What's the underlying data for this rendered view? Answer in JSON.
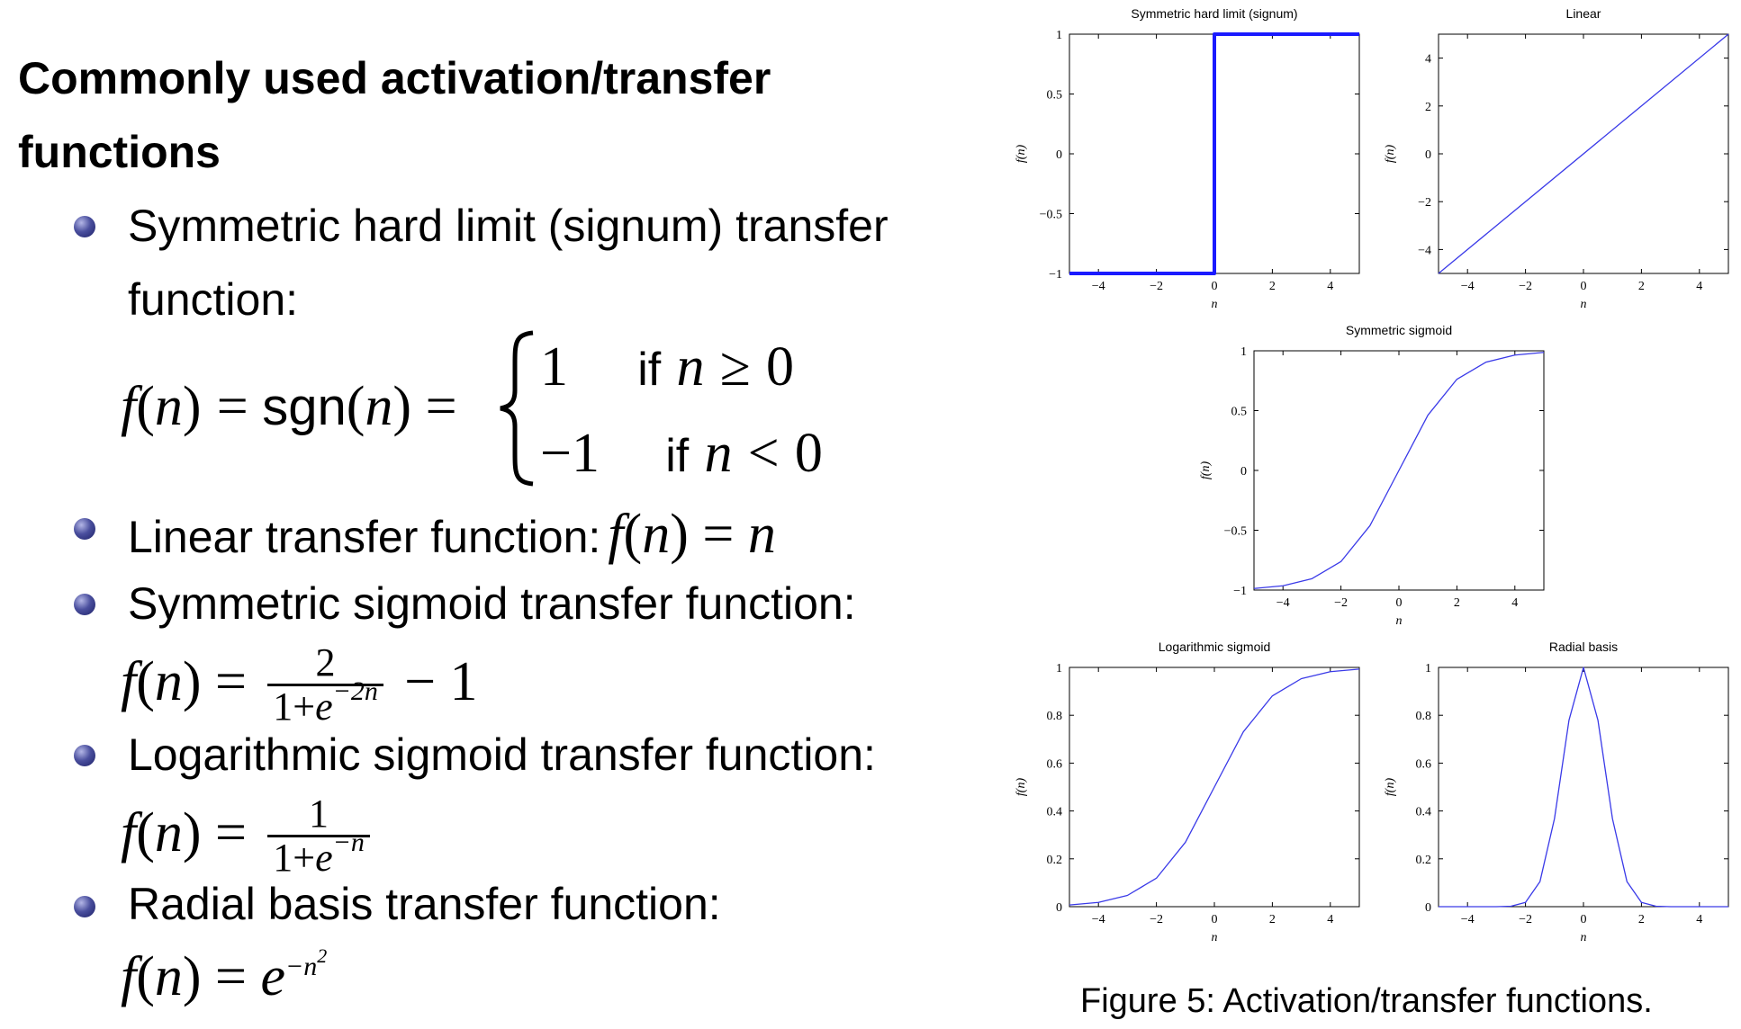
{
  "slide": {
    "heading_line1": "Commonly used activation/transfer",
    "heading_line2": "functions",
    "bullets": [
      {
        "text_line1": "Symmetric hard limit (signum) transfer",
        "text_line2": "function:"
      },
      {
        "text": "Linear transfer function:"
      },
      {
        "text": "Symmetric sigmoid transfer function:"
      },
      {
        "text": "Logarithmic sigmoid transfer function:"
      },
      {
        "text": "Radial basis transfer function:"
      }
    ],
    "formulas": {
      "signum": {
        "lhs_f": "f",
        "lhs_n": "n",
        "sgn": "sgn",
        "case1_val": "1",
        "case1_cond": "if",
        "case2_val": "−1",
        "case2_cond": "if",
        "var": "n",
        "ge": "≥",
        "lt": "<",
        "zero": "0"
      },
      "linear": {
        "f": "f",
        "n": "n"
      },
      "symmetric_sigmoid": {
        "num": "2",
        "den_prefix": "1+",
        "e": "e",
        "exp": "−2n",
        "tail": "− 1"
      },
      "log_sigmoid": {
        "num": "1",
        "den_prefix": "1+",
        "e": "e",
        "exp": "−n"
      },
      "radial_basis": {
        "e": "e",
        "exp": "−n",
        "exp_sq": "2"
      }
    }
  },
  "figure": {
    "caption": "Figure 5: Activation/transfer functions.",
    "ylabel": "f(n)",
    "xlabel": "n"
  },
  "chart_data": [
    {
      "type": "line",
      "title": "Symmetric hard limit (signum)",
      "xlabel": "n",
      "ylabel": "f(n)",
      "xlim": [
        -5,
        5
      ],
      "ylim": [
        -1,
        1
      ],
      "xticks": [
        -4,
        -2,
        0,
        2,
        4
      ],
      "yticks": [
        -1,
        -0.5,
        0,
        0.5,
        1
      ],
      "series": [
        {
          "x": [
            -5,
            0,
            0,
            5
          ],
          "y": [
            -1,
            -1,
            1,
            1
          ]
        }
      ],
      "color": "#1a1aff",
      "line_weight": "thick"
    },
    {
      "type": "line",
      "title": "Linear",
      "xlabel": "n",
      "ylabel": "f(n)",
      "xlim": [
        -5,
        5
      ],
      "ylim": [
        -5,
        5
      ],
      "xticks": [
        -4,
        -2,
        0,
        2,
        4
      ],
      "yticks": [
        -4,
        -2,
        0,
        2,
        4
      ],
      "series": [
        {
          "x": [
            -5,
            5
          ],
          "y": [
            -5,
            5
          ]
        }
      ],
      "color": "#3a3ae8",
      "line_weight": "thin"
    },
    {
      "type": "line",
      "title": "Symmetric sigmoid",
      "xlabel": "n",
      "ylabel": "f(n)",
      "xlim": [
        -5,
        5
      ],
      "ylim": [
        -1,
        1
      ],
      "xticks": [
        -4,
        -2,
        0,
        2,
        4
      ],
      "yticks": [
        -1,
        -0.5,
        0,
        0.5,
        1
      ],
      "series": [
        {
          "x": [
            -5,
            -4,
            -3,
            -2,
            -1,
            0,
            1,
            2,
            3,
            4,
            5
          ],
          "y": [
            -0.987,
            -0.964,
            -0.905,
            -0.762,
            -0.462,
            0,
            0.462,
            0.762,
            0.905,
            0.964,
            0.987
          ]
        }
      ],
      "color": "#3a3ae8",
      "line_weight": "thin"
    },
    {
      "type": "line",
      "title": "Logarithmic sigmoid",
      "xlabel": "n",
      "ylabel": "f(n)",
      "xlim": [
        -5,
        5
      ],
      "ylim": [
        0,
        1
      ],
      "xticks": [
        -4,
        -2,
        0,
        2,
        4
      ],
      "yticks": [
        0,
        0.2,
        0.4,
        0.6,
        0.8,
        1
      ],
      "series": [
        {
          "x": [
            -5,
            -4,
            -3,
            -2,
            -1,
            0,
            1,
            2,
            3,
            4,
            5
          ],
          "y": [
            0.007,
            0.018,
            0.047,
            0.119,
            0.269,
            0.5,
            0.731,
            0.881,
            0.953,
            0.982,
            0.993
          ]
        }
      ],
      "color": "#3a3ae8",
      "line_weight": "thin"
    },
    {
      "type": "line",
      "title": "Radial basis",
      "xlabel": "n",
      "ylabel": "f(n)",
      "xlim": [
        -5,
        5
      ],
      "ylim": [
        0,
        1
      ],
      "xticks": [
        -4,
        -2,
        0,
        2,
        4
      ],
      "yticks": [
        0,
        0.2,
        0.4,
        0.6,
        0.8,
        1
      ],
      "series": [
        {
          "x": [
            -5,
            -3,
            -2.5,
            -2,
            -1.5,
            -1,
            -0.5,
            0,
            0.5,
            1,
            1.5,
            2,
            2.5,
            3,
            5
          ],
          "y": [
            0,
            0.0001,
            0.002,
            0.018,
            0.105,
            0.368,
            0.779,
            1,
            0.779,
            0.368,
            0.105,
            0.018,
            0.002,
            0.0001,
            0
          ]
        }
      ],
      "color": "#3a3ae8",
      "line_weight": "thin"
    }
  ]
}
